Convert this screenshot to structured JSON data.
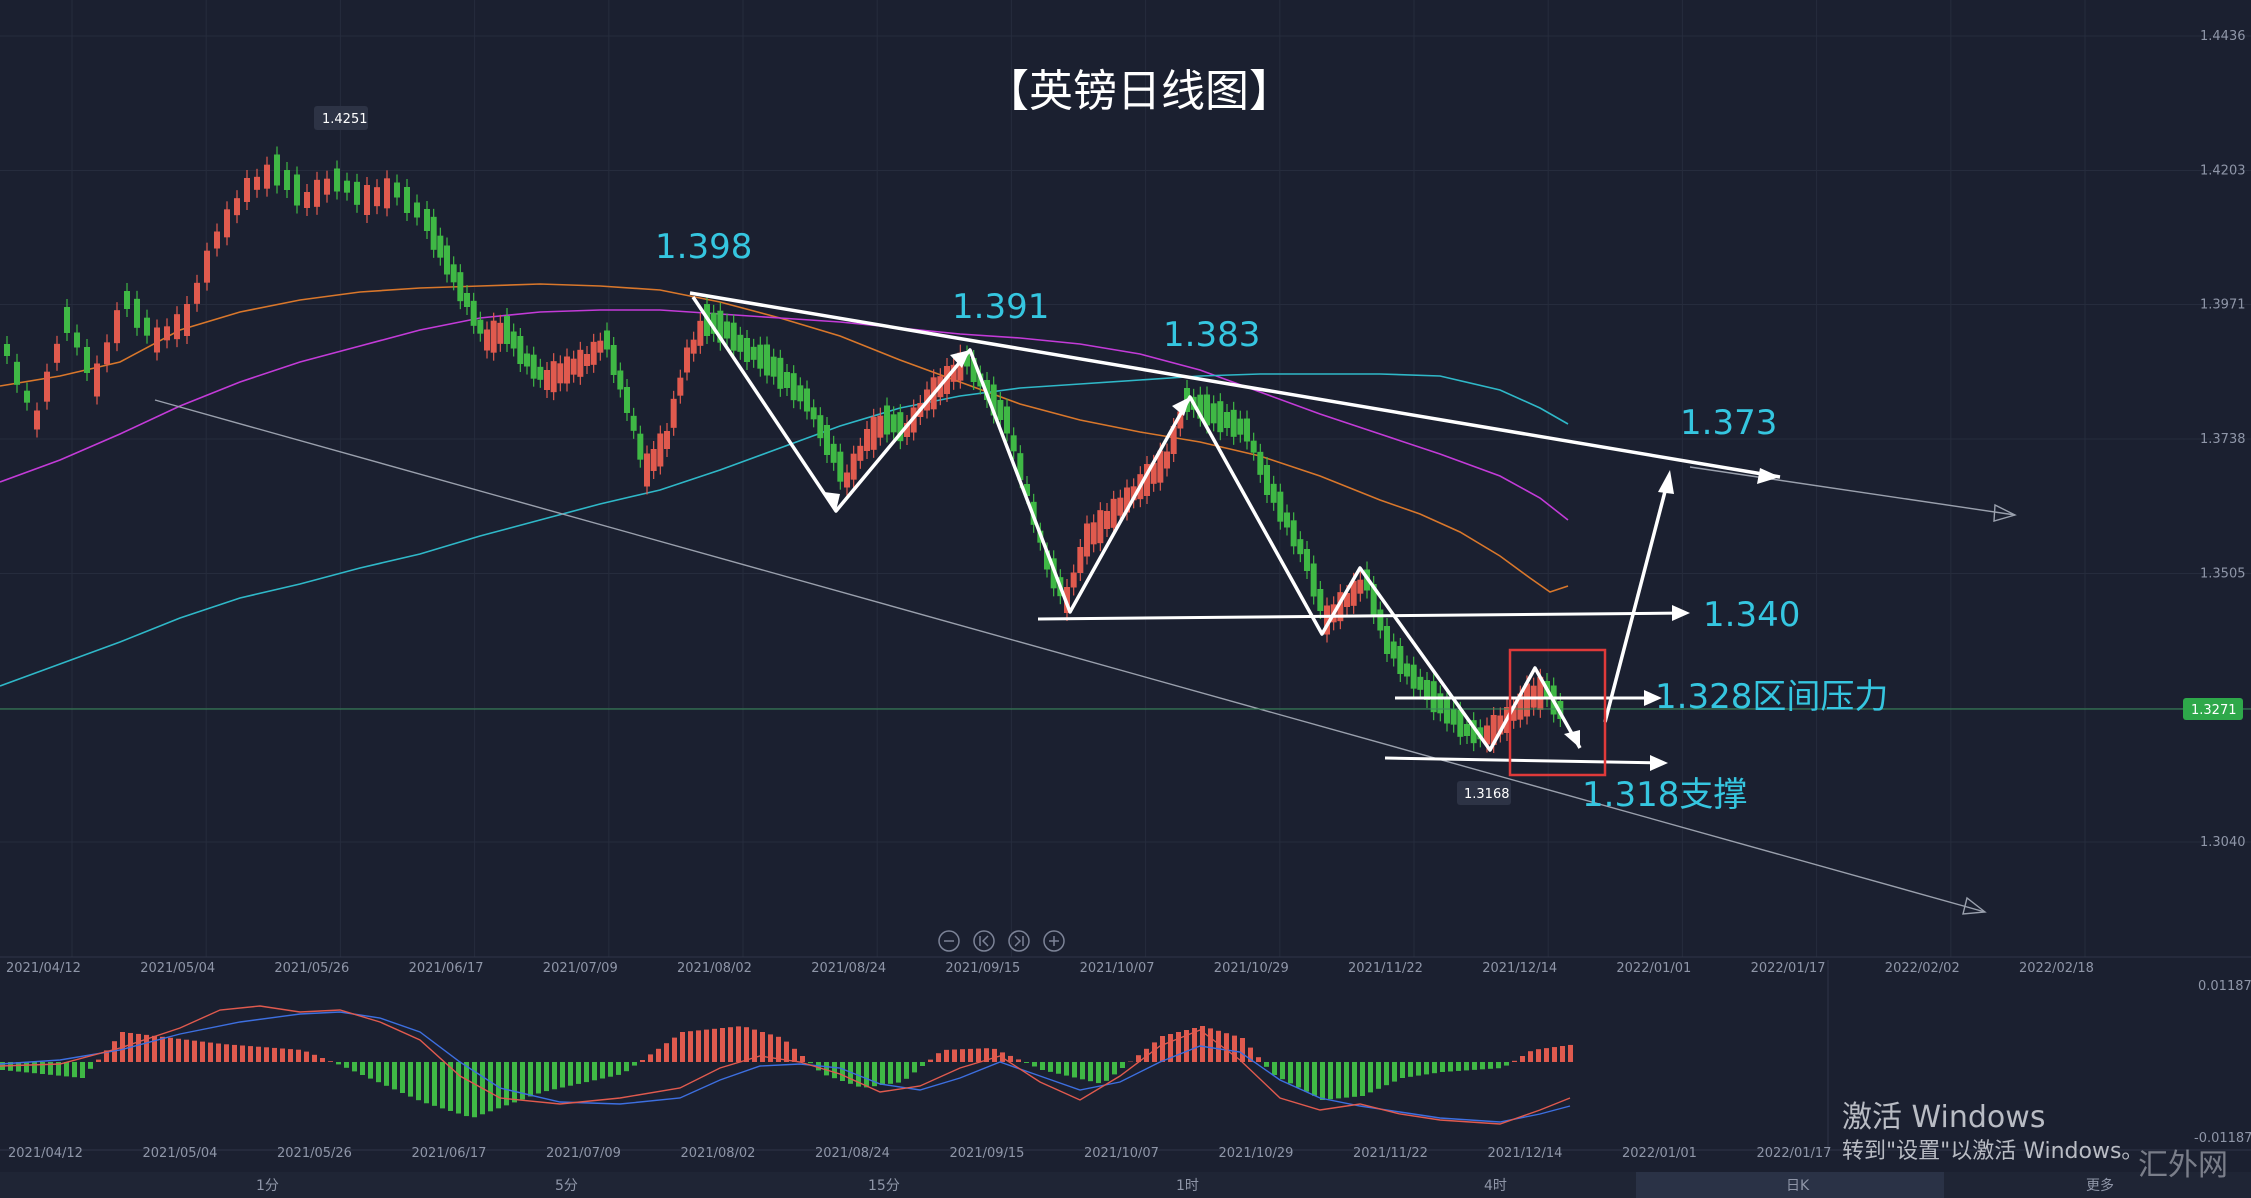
{
  "chart_data": [
    {
      "type": "candlestick",
      "title": "【英镑日线图】",
      "price_axis": {
        "ticks": [
          "1.4436",
          "1.4203",
          "1.3971",
          "1.3738",
          "1.3505",
          "1.3271",
          "1.3040"
        ],
        "current": "1.3271"
      },
      "x_ticks": [
        "2021/04/12",
        "2021/05/04",
        "2021/05/26",
        "2021/06/17",
        "2021/07/09",
        "2021/08/02",
        "2021/08/24",
        "2021/09/15",
        "2021/10/07",
        "2021/10/29",
        "2021/11/22",
        "2021/12/14",
        "2022/01/01",
        "2022/01/17",
        "2022/02/02",
        "2022/02/18"
      ],
      "labels": {
        "high": "1.4251",
        "low": "1.3168"
      },
      "swing_points": [
        1.398,
        1.3625,
        1.391,
        1.348,
        1.383,
        1.344,
        1.354,
        1.318,
        1.331,
        1.32
      ],
      "forecast": [
        1.373
      ],
      "levels": [
        {
          "value": 1.34,
          "label": "1.340"
        },
        {
          "value": 1.328,
          "label": "1.328区间压力"
        },
        {
          "value": 1.318,
          "label": "1.318支撑"
        }
      ],
      "annotations": [
        "1.398",
        "1.391",
        "1.383",
        "1.373"
      ],
      "moving_averages": [
        "orange",
        "magenta",
        "cyan"
      ]
    },
    {
      "type": "macd",
      "y_ticks": [
        "0.01187",
        "-0.01187"
      ],
      "x_ticks": [
        "2021/04/12",
        "2021/05/04",
        "2021/05/26",
        "2021/06/17",
        "2021/07/09",
        "2021/08/02",
        "2021/08/24",
        "2021/09/15",
        "2021/10/07",
        "2021/10/29",
        "2021/11/22",
        "2021/12/14",
        "2022/01/01",
        "2022/01/17"
      ]
    }
  ],
  "tabs": [
    "1分",
    "5分",
    "15分",
    "1时",
    "4时",
    "日K",
    "更多"
  ],
  "watermark": {
    "line1": "激活 Windows",
    "line2": "转到\"设置\"以激活 Windows。",
    "brand": "汇外网"
  },
  "colors": {
    "up": "#e05a4e",
    "down": "#3fb845",
    "bg": "#1b2030",
    "accent": "#35c6e0"
  }
}
